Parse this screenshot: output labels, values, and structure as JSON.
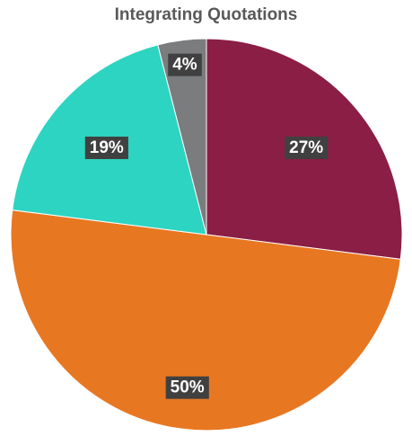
{
  "chart_data": {
    "type": "pie",
    "title": "Integrating Quotations",
    "slices": [
      {
        "value": 27,
        "label": "27%",
        "color": "#8B1E45"
      },
      {
        "value": 50,
        "label": "50%",
        "color": "#E87722"
      },
      {
        "value": 19,
        "label": "19%",
        "color": "#2DD4C1"
      },
      {
        "value": 4,
        "label": "4%",
        "color": "#7A7C7E"
      }
    ],
    "data_label_style": {
      "background": "#404040",
      "text_color": "#ffffff"
    },
    "start": "12 o'clock",
    "direction": "clockwise",
    "legend": "none"
  }
}
